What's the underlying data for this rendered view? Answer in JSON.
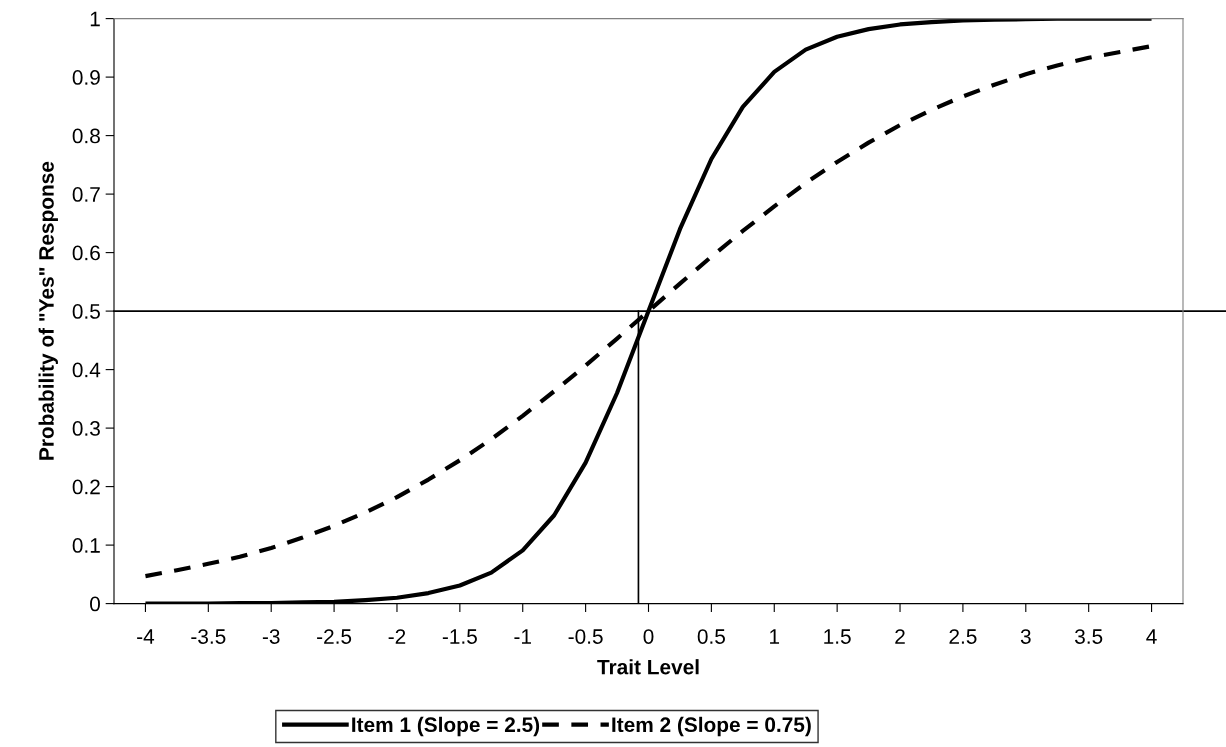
{
  "chart_data": {
    "type": "line",
    "xlabel": "Trait Level",
    "ylabel": "Probability of \"Yes\" Response",
    "x": [
      -4,
      -3.75,
      -3.5,
      -3.25,
      -3,
      -2.75,
      -2.5,
      -2.25,
      -2,
      -1.75,
      -1.5,
      -1.25,
      -1,
      -0.75,
      -0.5,
      -0.25,
      0,
      0.25,
      0.5,
      0.75,
      1,
      1.25,
      1.5,
      1.75,
      2,
      2.25,
      2.5,
      2.75,
      3,
      3.25,
      3.5,
      3.75,
      4
    ],
    "series": [
      {
        "name": "Item 1 (Slope = 2.5)",
        "color": "#000000",
        "line_style": "solid",
        "values": [
          0.0,
          0.0,
          0.0,
          0.001,
          0.001,
          0.002,
          0.003,
          0.006,
          0.01,
          0.018,
          0.031,
          0.053,
          0.091,
          0.151,
          0.241,
          0.36,
          0.5,
          0.64,
          0.76,
          0.849,
          0.909,
          0.947,
          0.969,
          0.982,
          0.99,
          0.994,
          0.997,
          0.998,
          0.999,
          1.0,
          1.0,
          1.0,
          1.0
        ]
      },
      {
        "name": "Item 2 (Slope = 0.75)",
        "color": "#000000",
        "line_style": "dashed",
        "values": [
          0.047,
          0.057,
          0.068,
          0.08,
          0.095,
          0.113,
          0.133,
          0.156,
          0.182,
          0.212,
          0.245,
          0.281,
          0.321,
          0.363,
          0.407,
          0.453,
          0.5,
          0.547,
          0.593,
          0.637,
          0.679,
          0.719,
          0.755,
          0.788,
          0.818,
          0.844,
          0.867,
          0.887,
          0.905,
          0.92,
          0.933,
          0.943,
          0.953
        ]
      }
    ],
    "xlim": [
      -4.25,
      4.25
    ],
    "xticks": [
      -4,
      -3.5,
      -3,
      -2.5,
      -2,
      -1.5,
      -1,
      -0.5,
      0,
      0.5,
      1,
      1.5,
      2,
      2.5,
      3,
      3.5,
      4
    ],
    "ylim": [
      0,
      1
    ],
    "yticks": [
      0,
      0.1,
      0.2,
      0.3,
      0.4,
      0.5,
      0.6,
      0.7,
      0.8,
      0.9,
      1
    ],
    "ref_lines": [
      {
        "axis": "y",
        "value": 0.5,
        "color": "#000000"
      },
      {
        "axis": "x",
        "value": -0.08,
        "color": "#000000"
      }
    ],
    "legend": "bottom",
    "grid": false,
    "marker": "none"
  }
}
